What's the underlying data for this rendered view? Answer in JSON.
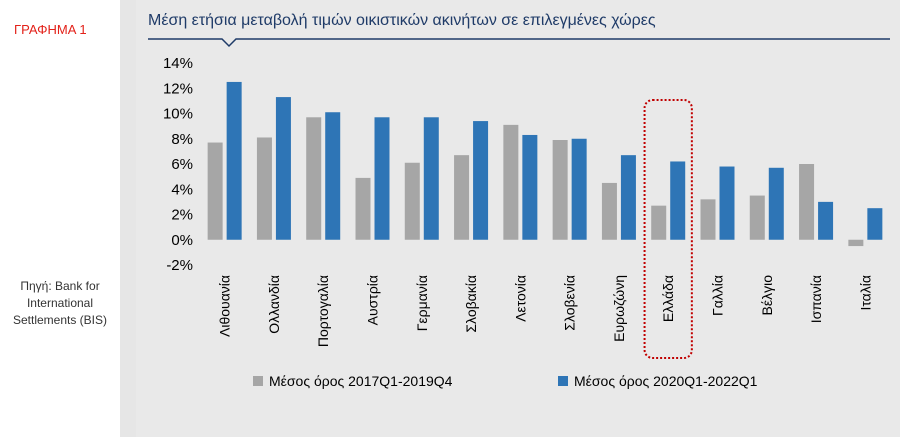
{
  "left": {
    "figure_label": "ΓΡΑΦΗΜΑ 1",
    "source_text": "Πηγή: Bank for International Settlements (BIS)"
  },
  "colors": {
    "series1": "#a6a6a6",
    "series2": "#2e75b6",
    "title": "#1f3b68",
    "highlight": "#c00000"
  },
  "chart_data": {
    "type": "bar",
    "title": "Μέση ετήσια μεταβολή τιμών οικιστικών ακινήτων σε επιλεγμένες χώρες",
    "categories": [
      "Λιθουανία",
      "Ολλανδία",
      "Πορτογαλία",
      "Αυστρία",
      "Γερμανία",
      "Σλοβακία",
      "Λετονία",
      "Σλοβενία",
      "Ευρωζώνη",
      "Ελλάδα",
      "Γαλλία",
      "Βέλγιο",
      "Ισπανία",
      "Ιταλία"
    ],
    "series": [
      {
        "name": "Μέσος όρος 2017Q1-2019Q4",
        "values": [
          7.7,
          8.1,
          9.7,
          4.9,
          6.1,
          6.7,
          9.1,
          7.9,
          4.5,
          2.7,
          3.2,
          3.5,
          6.0,
          -0.5
        ]
      },
      {
        "name": "Μέσος όρος 2020Q1-2022Q1",
        "values": [
          12.5,
          11.3,
          10.1,
          9.7,
          9.7,
          9.4,
          8.3,
          8.0,
          6.7,
          6.2,
          5.8,
          5.7,
          3.0,
          2.5
        ]
      }
    ],
    "yticks": [
      "14%",
      "12%",
      "10%",
      "8%",
      "6%",
      "4%",
      "2%",
      "0%",
      "-2%"
    ],
    "ylim": [
      -2,
      14
    ],
    "highlighted_category": "Ελλάδα",
    "legend_position": "bottom"
  }
}
